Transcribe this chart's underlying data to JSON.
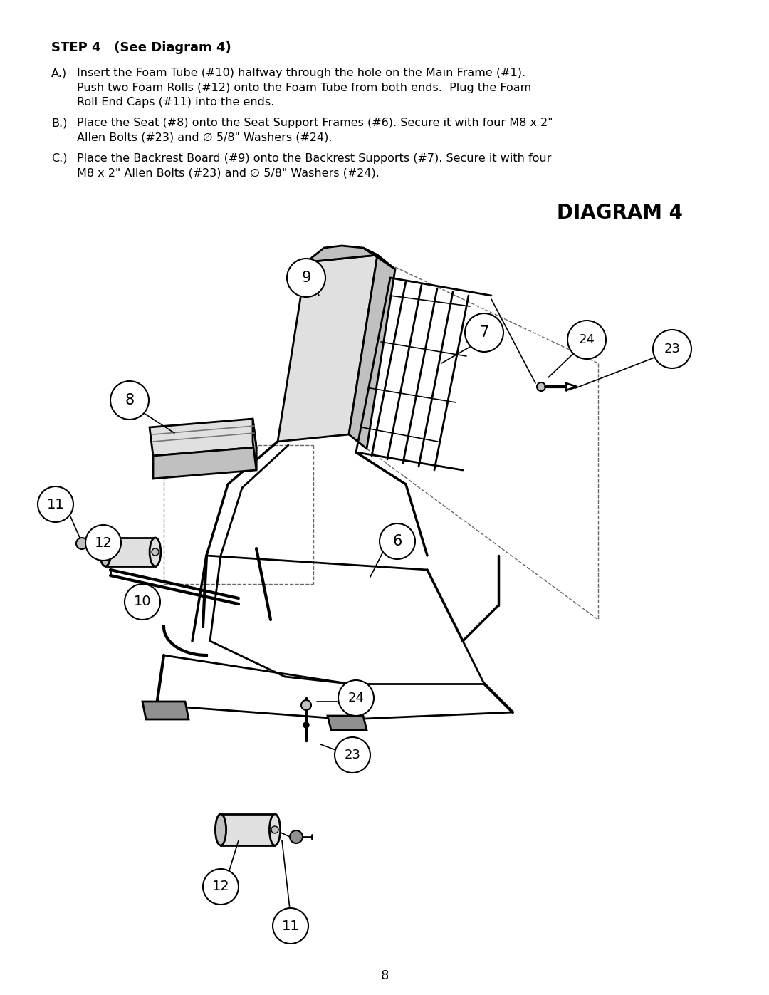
{
  "page_background": "#ffffff",
  "title_step": "STEP 4   (See Diagram 4)",
  "diagram_label": "DIAGRAM 4",
  "instructions": [
    {
      "label": "A.)",
      "text": "Insert the Foam Tube (#10) halfway through the hole on the Main Frame (#1).\n    Push two Foam Rolls (#12) onto the Foam Tube from both ends.  Plug the Foam\n    Roll End Caps (#11) into the ends."
    },
    {
      "label": "B.)",
      "text": "Place the Seat (#8) onto the Seat Support Frames (#6). Secure it with four M8 x 2\"\n    Allen Bolts (#23) and ∅ 5/8\" Washers (#24)."
    },
    {
      "label": "C.)",
      "text": "Place the Backrest Board (#9) onto the Backrest Supports (#7). Secure it with four\n    M8 x 2\" Allen Bolts (#23) and ∅ 5/8\" Washers (#24)."
    }
  ],
  "page_number": "8",
  "fig_width": 10.8,
  "fig_height": 13.97
}
